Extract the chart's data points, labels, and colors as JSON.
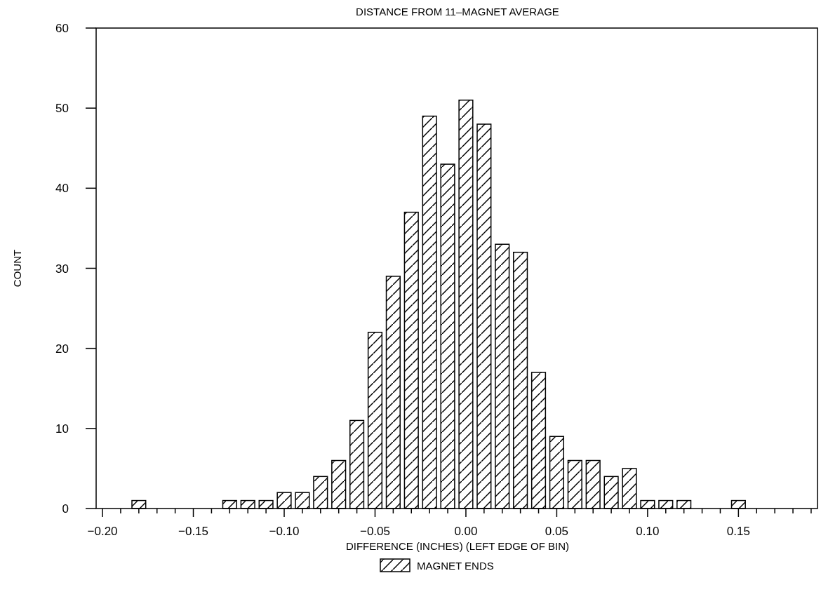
{
  "chart_data": {
    "type": "histogram",
    "title": "DISTANCE FROM 11–MAGNET AVERAGE",
    "xlabel": "DIFFERENCE (INCHES) (LEFT EDGE OF BIN)",
    "ylabel": "COUNT",
    "bins": [
      -0.185,
      -0.175,
      -0.165,
      -0.155,
      -0.145,
      -0.135,
      -0.125,
      -0.115,
      -0.105,
      -0.095,
      -0.085,
      -0.075,
      -0.065,
      -0.055,
      -0.045,
      -0.035,
      -0.025,
      -0.015,
      -0.005,
      0.005,
      0.015,
      0.025,
      0.035,
      0.045,
      0.055,
      0.065,
      0.075,
      0.085,
      0.095,
      0.105,
      0.115,
      0.125,
      0.135,
      0.145,
      0.155
    ],
    "series": [
      {
        "name": "MAGNET ENDS",
        "color": "#000000",
        "values": [
          1,
          0,
          0,
          0,
          0,
          1,
          1,
          1,
          2,
          2,
          4,
          6,
          11,
          22,
          29,
          37,
          49,
          43,
          51,
          48,
          33,
          32,
          17,
          9,
          6,
          6,
          4,
          5,
          1,
          1,
          1,
          0,
          0,
          1
        ]
      }
    ],
    "xlim": [
      -0.2035,
      0.1935
    ],
    "xticks": [
      {
        "value": -0.2,
        "label": "−0.20"
      },
      {
        "value": -0.19,
        "label": null
      },
      {
        "value": -0.18,
        "label": null
      },
      {
        "value": -0.17,
        "label": null
      },
      {
        "value": -0.16,
        "label": null
      },
      {
        "value": -0.15,
        "label": "−0.15"
      },
      {
        "value": -0.14,
        "label": null
      },
      {
        "value": -0.13,
        "label": null
      },
      {
        "value": -0.12,
        "label": null
      },
      {
        "value": -0.11,
        "label": null
      },
      {
        "value": -0.1,
        "label": "−0.10"
      },
      {
        "value": -0.09,
        "label": null
      },
      {
        "value": -0.08,
        "label": null
      },
      {
        "value": -0.07,
        "label": null
      },
      {
        "value": -0.06,
        "label": null
      },
      {
        "value": -0.05,
        "label": "−0.05"
      },
      {
        "value": -0.04,
        "label": null
      },
      {
        "value": -0.03,
        "label": null
      },
      {
        "value": -0.02,
        "label": null
      },
      {
        "value": -0.01,
        "label": null
      },
      {
        "value": 0,
        "label": "0.00"
      },
      {
        "value": 0.01,
        "label": null
      },
      {
        "value": 0.02,
        "label": null
      },
      {
        "value": 0.03,
        "label": null
      },
      {
        "value": 0.04,
        "label": null
      },
      {
        "value": 0.05,
        "label": "0.05"
      },
      {
        "value": 0.06,
        "label": null
      },
      {
        "value": 0.07,
        "label": null
      },
      {
        "value": 0.08,
        "label": null
      },
      {
        "value": 0.09,
        "label": null
      },
      {
        "value": 0.1,
        "label": "0.10"
      },
      {
        "value": 0.11,
        "label": null
      },
      {
        "value": 0.12,
        "label": null
      },
      {
        "value": 0.13,
        "label": null
      },
      {
        "value": 0.14,
        "label": null
      },
      {
        "value": 0.15,
        "label": "0.15"
      },
      {
        "value": 0.16,
        "label": null
      },
      {
        "value": 0.17,
        "label": null
      },
      {
        "value": 0.18,
        "label": null
      },
      {
        "value": 0.19,
        "label": null
      }
    ],
    "ylim": [
      0,
      60
    ],
    "yticks": [
      0,
      10,
      20,
      30,
      40,
      50,
      60
    ],
    "grid": false,
    "legend": "bottom"
  }
}
